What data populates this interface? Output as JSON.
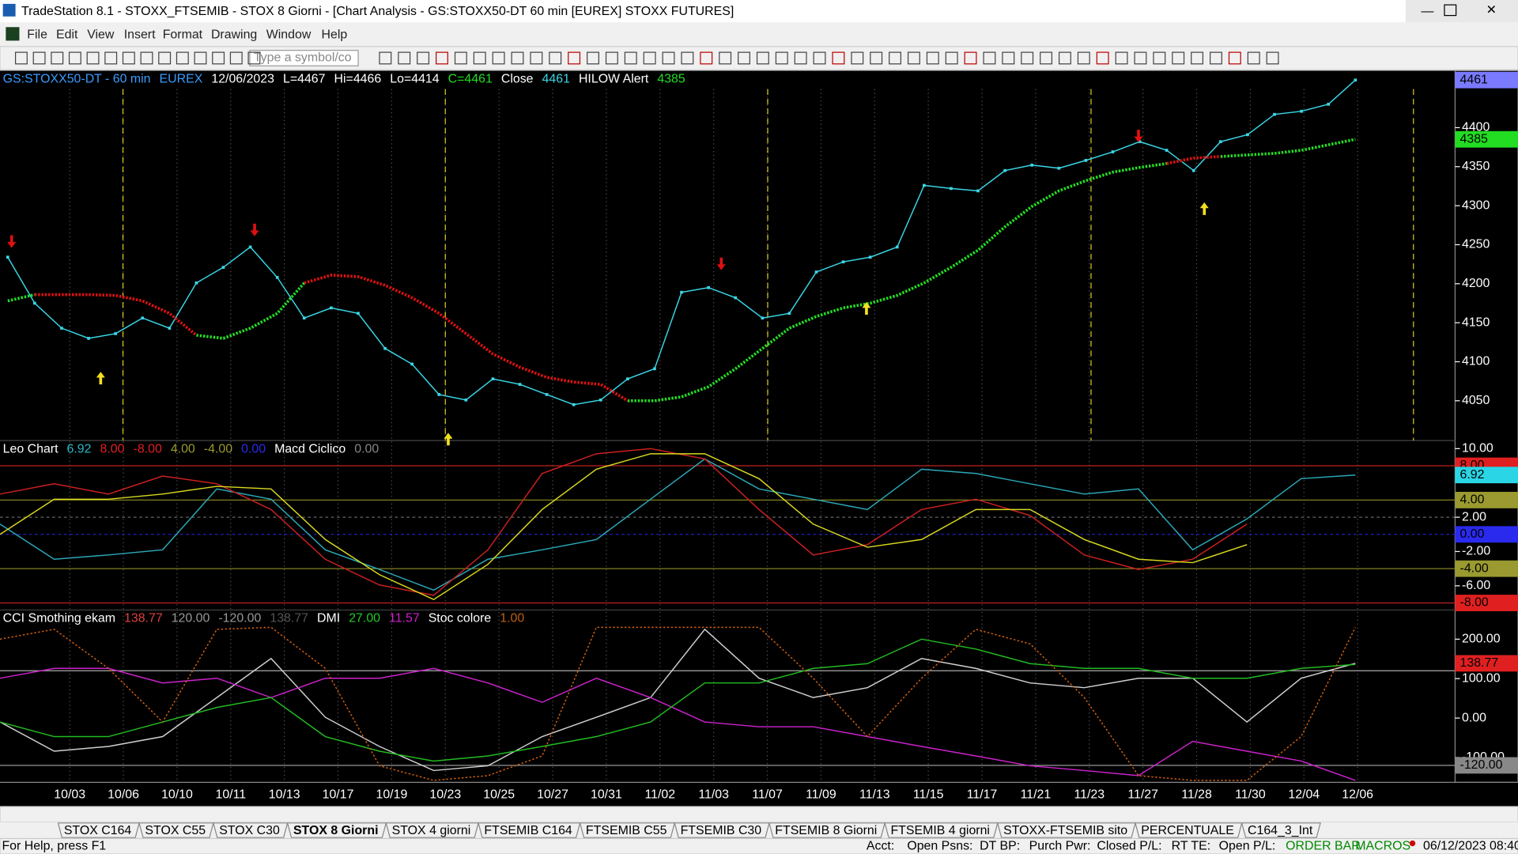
{
  "window": {
    "title": "TradeStation 8.1 - STOXX_FTSEMIB - STOX  8 Giorni - [Chart Analysis - GS:STOXX50-DT  60 min  [EUREX] STOXX FUTURES]"
  },
  "menu": [
    "File",
    "Edit",
    "View",
    "Insert",
    "Format",
    "Drawing",
    "Window",
    "Help"
  ],
  "toolbar": {
    "symbol_input": "Type a symbol/co"
  },
  "price_pane": {
    "header": [
      {
        "text": "GS:STOXX50-DT - 60 min",
        "color": "#3a9cff"
      },
      {
        "text": "EUREX",
        "color": "#3a9cff"
      },
      {
        "text": "12/06/2023",
        "color": "#ffffff"
      },
      {
        "text": "L=4467",
        "color": "#ffffff"
      },
      {
        "text": "Hi=4466",
        "color": "#ffffff"
      },
      {
        "text": "Lo=4414",
        "color": "#ffffff"
      },
      {
        "text": "C=4461",
        "color": "#22dd22"
      },
      {
        "text": "Close",
        "color": "#ffffff"
      },
      {
        "text": "4461",
        "color": "#3ad6e6"
      },
      {
        "text": "HILOW Alert",
        "color": "#ffffff"
      },
      {
        "text": "4385",
        "color": "#22dd22"
      }
    ],
    "ylim": [
      3999,
      4473
    ],
    "yticks": [
      4050,
      4100,
      4150,
      4200,
      4250,
      4300,
      4350,
      4400
    ],
    "axis_markers": [
      {
        "value": 4461,
        "color": "#7a7aff"
      },
      {
        "value": 4385,
        "color": "#22dd22"
      }
    ],
    "series": [
      {
        "color": "#3ad6e6",
        "style": "line-dots",
        "values": [
          4234,
          4175,
          4143,
          4130,
          4136,
          4156,
          4143,
          4201,
          4221,
          4247,
          4208,
          4156,
          4169,
          4162,
          4117,
          4097,
          4058,
          4051,
          4078,
          4071,
          4058,
          4045,
          4051,
          4078,
          4091,
          4189,
          4195,
          4182,
          4156,
          4162,
          4215,
          4228,
          4234,
          4247,
          4326,
          4322,
          4319,
          4345,
          4352,
          4348,
          4358,
          4369,
          4382,
          4371,
          4345,
          4382,
          4391,
          4417,
          4421,
          4430,
          4461
        ]
      },
      {
        "color": "#22dd22",
        "style": "dotted",
        "values": [
          4178,
          4186,
          null,
          null,
          null,
          null,
          null,
          4134,
          4130,
          4143,
          4162,
          4201,
          null,
          null,
          null,
          null,
          null,
          null,
          null,
          null,
          null,
          null,
          null,
          4050,
          4050,
          4055,
          4068,
          4091,
          4117,
          4143,
          4158,
          4169,
          4175,
          4185,
          4201,
          4221,
          4243,
          4273,
          4299,
          4319,
          4332,
          4343,
          4349,
          4354,
          null,
          4363,
          4365,
          4367,
          4371,
          4378,
          4385
        ]
      },
      {
        "color": "#e01010",
        "style": "dotted",
        "values": [
          null,
          4186,
          4186,
          4186,
          4185,
          4178,
          4162,
          4134,
          null,
          null,
          null,
          4201,
          4211,
          4209,
          4198,
          4182,
          4162,
          4136,
          4110,
          4093,
          4080,
          4074,
          4071,
          4050,
          null,
          null,
          null,
          null,
          null,
          null,
          null,
          null,
          null,
          null,
          null,
          null,
          null,
          null,
          null,
          null,
          null,
          null,
          null,
          4354,
          4361,
          4363,
          null,
          null,
          null,
          null,
          null
        ]
      }
    ]
  },
  "leo_pane": {
    "header": [
      {
        "text": "Leo Chart",
        "color": "#ffffff"
      },
      {
        "text": "6.92",
        "color": "#2ab8c8"
      },
      {
        "text": "8.00",
        "color": "#e02020"
      },
      {
        "text": "-8.00",
        "color": "#e02020"
      },
      {
        "text": "4.00",
        "color": "#9a9a30"
      },
      {
        "text": "-4.00",
        "color": "#9a9a30"
      },
      {
        "text": "0.00",
        "color": "#2a2aee"
      },
      {
        "text": "Macd Ciclico",
        "color": "#ffffff"
      },
      {
        "text": "0.00",
        "color": "#888888"
      }
    ],
    "ylim": [
      -8.82,
      10.94
    ],
    "yticks": [
      {
        "value": 10,
        "label": "10.00"
      },
      {
        "value": 2,
        "label": "2.00"
      },
      {
        "value": -2,
        "label": "-2.00"
      },
      {
        "value": -6,
        "label": "-6.00"
      }
    ],
    "axis_markers": [
      {
        "value": 8,
        "label": "8.00",
        "color": "#e02020"
      },
      {
        "value": 6.92,
        "label": "6.92",
        "color": "#2ad6e6"
      },
      {
        "value": 4,
        "label": "4.00",
        "color": "#9a9a30"
      },
      {
        "value": 0,
        "label": "0.00",
        "color": "#2a2aee"
      },
      {
        "value": -4,
        "label": "-4.00",
        "color": "#9a9a30"
      },
      {
        "value": -8,
        "label": "-8.00",
        "color": "#e02020"
      }
    ],
    "levels": [
      {
        "value": 8,
        "color": "#c02020"
      },
      {
        "value": 4,
        "color": "#808020"
      },
      {
        "value": 2,
        "color": "#666666"
      },
      {
        "value": 0,
        "color": "#2020c0"
      },
      {
        "value": -4,
        "color": "#808020"
      },
      {
        "value": -8,
        "color": "#c02020"
      }
    ],
    "series": [
      {
        "color": "#2aa8b8",
        "style": "line",
        "values": [
          1.2,
          -2.9,
          -2.4,
          -1.8,
          5.3,
          4.1,
          -1.8,
          -4.1,
          -6.5,
          -2.9,
          -1.8,
          -0.6,
          4.1,
          8.8,
          5.3,
          4.1,
          2.9,
          7.6,
          7.1,
          5.9,
          4.7,
          5.3,
          -1.8,
          1.8,
          6.5,
          6.92
        ]
      },
      {
        "color": "#cc2020",
        "style": "line",
        "values": [
          4.7,
          5.9,
          4.7,
          6.8,
          5.9,
          2.9,
          -2.9,
          -5.9,
          -7.1,
          -1.8,
          7.1,
          9.4,
          10,
          8.8,
          2.9,
          -2.4,
          -1.2,
          2.9,
          4.1,
          2.2,
          -2.4,
          -4.1,
          -2.9,
          1.2,
          null,
          null
        ]
      },
      {
        "color": "#d8d820",
        "style": "line",
        "values": [
          0,
          4.1,
          4.1,
          4.7,
          5.6,
          5.3,
          -0.6,
          -4.7,
          -7.6,
          -3.5,
          2.9,
          7.6,
          9.4,
          9.4,
          6.5,
          1.2,
          -1.5,
          -0.6,
          2.9,
          2.9,
          -0.6,
          -2.9,
          -3.3,
          -1.2,
          null,
          null
        ]
      }
    ]
  },
  "cci_pane": {
    "header": [
      {
        "text": "CCI Smothing ekam",
        "color": "#ffffff"
      },
      {
        "text": "138.77",
        "color": "#e04040"
      },
      {
        "text": "120.00",
        "color": "#999999"
      },
      {
        "text": "-120.00",
        "color": "#999999"
      },
      {
        "text": "138.77",
        "color": "#555555"
      },
      {
        "text": "DMI",
        "color": "#ffffff"
      },
      {
        "text": "27.00",
        "color": "#22cc22"
      },
      {
        "text": "11.57",
        "color": "#cc22cc"
      },
      {
        "text": "Stoc colore",
        "color": "#ffffff"
      },
      {
        "text": "1.00",
        "color": "#c06010"
      }
    ],
    "ylim": [
      -163,
      274
    ],
    "yticks": [
      {
        "value": 200,
        "label": "200.00"
      },
      {
        "value": 100,
        "label": "100.00"
      },
      {
        "value": 0,
        "label": "0.00"
      },
      {
        "value": -100,
        "label": "-100.00"
      }
    ],
    "axis_markers": [
      {
        "value": 138.77,
        "label": "138.77",
        "color": "#e02020"
      },
      {
        "value": -120,
        "label": "-120.00",
        "color": "#888888"
      }
    ],
    "levels": [
      {
        "value": 120,
        "color": "#aaaaaa"
      },
      {
        "value": -120,
        "color": "#aaaaaa"
      }
    ],
    "series": [
      {
        "color": "#d0d0d0",
        "style": "line",
        "values": [
          -10,
          -84,
          -72,
          -47,
          52,
          151,
          2,
          -72,
          -133,
          -121,
          -47,
          2,
          52,
          225,
          101,
          52,
          77,
          151,
          126,
          89,
          77,
          101,
          101,
          -10,
          101,
          138.77
        ]
      },
      {
        "color": "#cc22cc",
        "style": "line",
        "values": [
          101,
          126,
          126,
          89,
          101,
          52,
          101,
          101,
          126,
          89,
          40,
          101,
          52,
          -10,
          -22,
          -22,
          -47,
          -72,
          -96,
          -121,
          -133,
          -146,
          -59,
          -84,
          -109,
          -158
        ]
      },
      {
        "color": "#22bb22",
        "style": "line",
        "values": [
          -10,
          -47,
          -47,
          -10,
          27,
          52,
          -47,
          -84,
          -109,
          -96,
          -72,
          -47,
          -10,
          89,
          89,
          126,
          138,
          200,
          175,
          138,
          126,
          126,
          101,
          101,
          126,
          136
        ]
      },
      {
        "color": "#d06010",
        "style": "dotted",
        "values": [
          200,
          225,
          126,
          -10,
          225,
          230,
          126,
          -121,
          -158,
          -146,
          -96,
          230,
          230,
          230,
          230,
          101,
          -47,
          101,
          225,
          188,
          52,
          -146,
          -158,
          -158,
          -47,
          230
        ]
      }
    ]
  },
  "x_axis": {
    "categories": [
      "10/03",
      "10/06",
      "10/10",
      "10/11",
      "10/13",
      "10/17",
      "10/19",
      "10/23",
      "10/25",
      "10/27",
      "10/31",
      "11/02",
      "11/03",
      "11/07",
      "11/09",
      "11/13",
      "11/15",
      "11/17",
      "11/21",
      "11/23",
      "11/27",
      "11/28",
      "11/30",
      "12/04",
      "12/06"
    ]
  },
  "tabs": [
    "STOX C164",
    "STOX C55",
    "STOX  C30",
    "STOX  8 Giorni",
    "STOX 4 giorni",
    "FTSEMIB C164",
    "FTSEMIB C55",
    "FTSEMIB C30",
    "FTSEMIB  8 Giorni",
    "FTSEMIB  4 giorni",
    "STOXX-FTSEMIB sito",
    "PERCENTUALE",
    "C164_3_Int"
  ],
  "status_bar": {
    "help": "For Help, press F1",
    "fields": [
      "Acct:",
      "Open Psns:",
      "DT BP:",
      "Purch Pwr:",
      "Closed P/L:",
      "RT TE:",
      "Open P/L:"
    ],
    "order_bar": "ORDER BAR",
    "macros": "MACROS",
    "datetime": "06/12/2023 08:40"
  }
}
